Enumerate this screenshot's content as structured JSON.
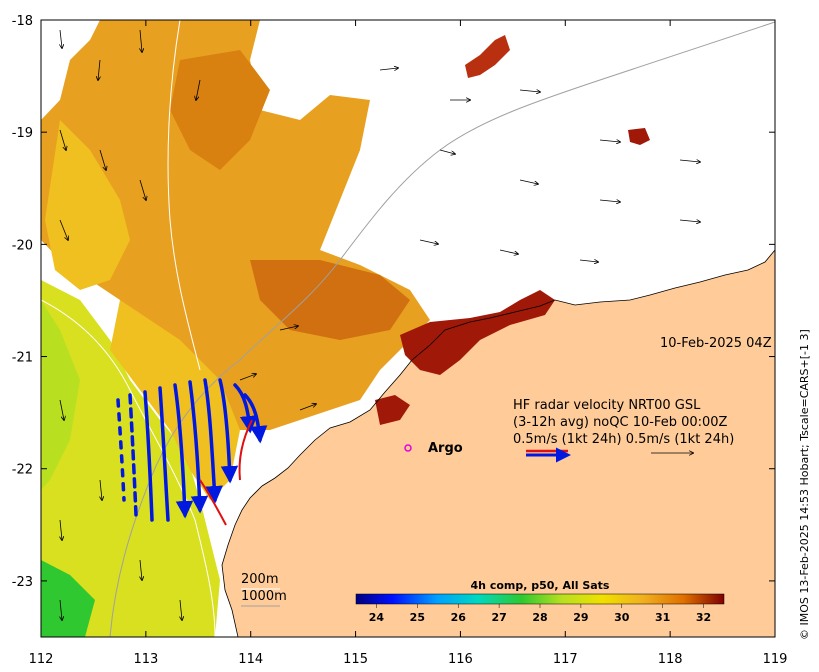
{
  "map": {
    "lon_range": [
      112,
      119
    ],
    "lat_range": [
      -23.5,
      -18
    ],
    "x_ticks": [
      "112",
      "113",
      "114",
      "115",
      "116",
      "117",
      "118",
      "119"
    ],
    "y_ticks": [
      "-18",
      "-19",
      "-20",
      "-21",
      "-22",
      "-23"
    ]
  },
  "timestamp": "10-Feb-2025 04Z",
  "argo_label": "Argo",
  "legend": {
    "line1": "HF radar velocity  NRT00 GSL",
    "line2": "(3-12h avg) noQC 10-Feb 00:00Z",
    "line3": "0.5m/s (1kt 24h)   0.5m/s (1kt 24h)"
  },
  "isobaths": [
    "200m",
    "1000m"
  ],
  "colorbar": {
    "title": "4h comp, p50, All Sats",
    "ticks": [
      "24",
      "25",
      "26",
      "27",
      "28",
      "29",
      "30",
      "31",
      "32"
    ],
    "range": [
      23.5,
      32.5
    ],
    "colors": [
      "#00007f",
      "#0010ff",
      "#00a0ff",
      "#00d8c0",
      "#30c830",
      "#b8e020",
      "#f0e000",
      "#f0b020",
      "#e07000",
      "#b02000",
      "#7f0000"
    ]
  },
  "credit": "© IMOS 13-Feb-2025 14:53 Hobart; Tscale=CARS+[-1 3]",
  "colors": {
    "land": "#ffcc99",
    "sst_warm": "#e8a020",
    "sst_hot": "#a01808",
    "sst_mid": "#f0c020",
    "sst_cool": "#d8e020",
    "radar_arrow": "#0018e0",
    "glider": "#e01010",
    "argo": "#e000e0"
  }
}
